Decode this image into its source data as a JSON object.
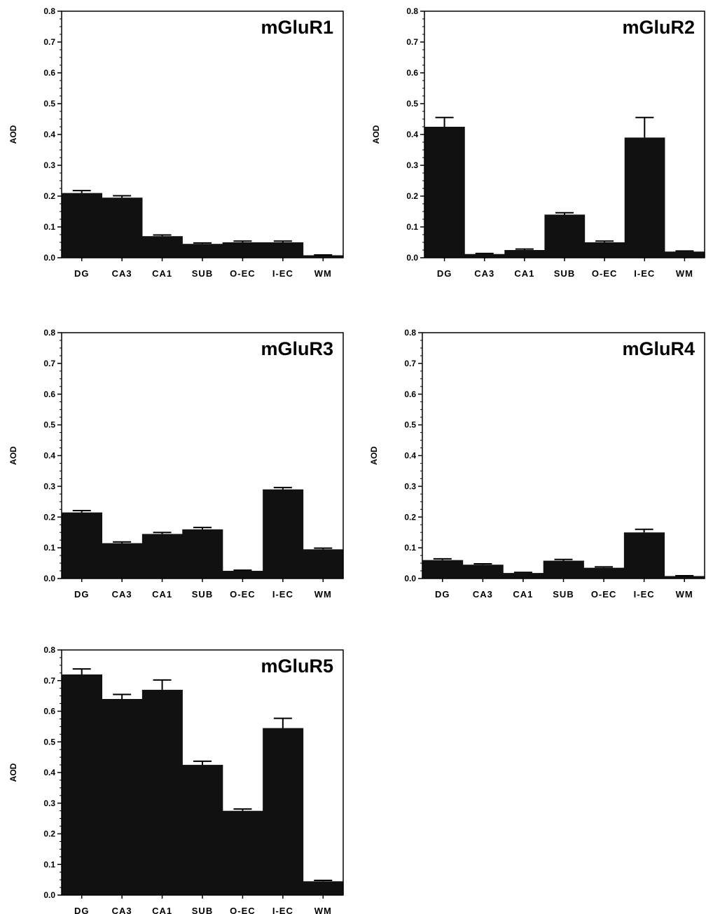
{
  "chart_data": [
    {
      "type": "bar",
      "title": "mGluR1",
      "ylabel": "AOD",
      "xlabel": "",
      "ylim": [
        0,
        0.8
      ],
      "yticks": [
        "0.0",
        "0.1",
        "0.2",
        "0.3",
        "0.4",
        "0.5",
        "0.6",
        "0.7",
        "0.8"
      ],
      "categories": [
        "DG",
        "CA3",
        "CA1",
        "SUB",
        "O-EC",
        "I-EC",
        "WM"
      ],
      "values": [
        0.21,
        0.195,
        0.07,
        0.045,
        0.05,
        0.05,
        0.008
      ],
      "errors": [
        0.008,
        0.006,
        0.004,
        0.003,
        0.004,
        0.004,
        0.001
      ]
    },
    {
      "type": "bar",
      "title": "mGluR2",
      "ylabel": "AOD",
      "xlabel": "",
      "ylim": [
        0,
        0.8
      ],
      "yticks": [
        "0.0",
        "0.1",
        "0.2",
        "0.3",
        "0.4",
        "0.5",
        "0.6",
        "0.7",
        "0.8"
      ],
      "categories": [
        "DG",
        "CA3",
        "CA1",
        "SUB",
        "O-EC",
        "I-EC",
        "WM"
      ],
      "values": [
        0.425,
        0.012,
        0.025,
        0.14,
        0.05,
        0.39,
        0.02
      ],
      "errors": [
        0.03,
        0.002,
        0.003,
        0.006,
        0.004,
        0.065,
        0.002
      ]
    },
    {
      "type": "bar",
      "title": "mGluR3",
      "ylabel": "AOD",
      "xlabel": "",
      "ylim": [
        0,
        0.8
      ],
      "yticks": [
        "0.0",
        "0.1",
        "0.2",
        "0.3",
        "0.4",
        "0.5",
        "0.6",
        "0.7",
        "0.8"
      ],
      "categories": [
        "DG",
        "CA3",
        "CA1",
        "SUB",
        "O-EC",
        "I-EC",
        "WM"
      ],
      "values": [
        0.215,
        0.115,
        0.145,
        0.16,
        0.025,
        0.29,
        0.095
      ],
      "errors": [
        0.006,
        0.004,
        0.005,
        0.006,
        0.002,
        0.006,
        0.004
      ]
    },
    {
      "type": "bar",
      "title": "mGluR4",
      "ylabel": "AOD",
      "xlabel": "",
      "ylim": [
        0,
        0.8
      ],
      "yticks": [
        "0.0",
        "0.1",
        "0.2",
        "0.3",
        "0.4",
        "0.5",
        "0.6",
        "0.7",
        "0.8"
      ],
      "categories": [
        "DG",
        "CA3",
        "CA1",
        "SUB",
        "O-EC",
        "I-EC",
        "WM"
      ],
      "values": [
        0.06,
        0.045,
        0.018,
        0.058,
        0.035,
        0.15,
        0.008
      ],
      "errors": [
        0.004,
        0.003,
        0.002,
        0.004,
        0.003,
        0.01,
        0.001
      ]
    },
    {
      "type": "bar",
      "title": "mGluR5",
      "ylabel": "AOD",
      "xlabel": "",
      "ylim": [
        0,
        0.8
      ],
      "yticks": [
        "0.0",
        "0.1",
        "0.2",
        "0.3",
        "0.4",
        "0.5",
        "0.6",
        "0.7",
        "0.8"
      ],
      "categories": [
        "DG",
        "CA3",
        "CA1",
        "SUB",
        "O-EC",
        "I-EC",
        "WM"
      ],
      "values": [
        0.72,
        0.64,
        0.67,
        0.425,
        0.275,
        0.545,
        0.045
      ],
      "errors": [
        0.018,
        0.015,
        0.032,
        0.012,
        0.006,
        0.032,
        0.003
      ]
    }
  ]
}
